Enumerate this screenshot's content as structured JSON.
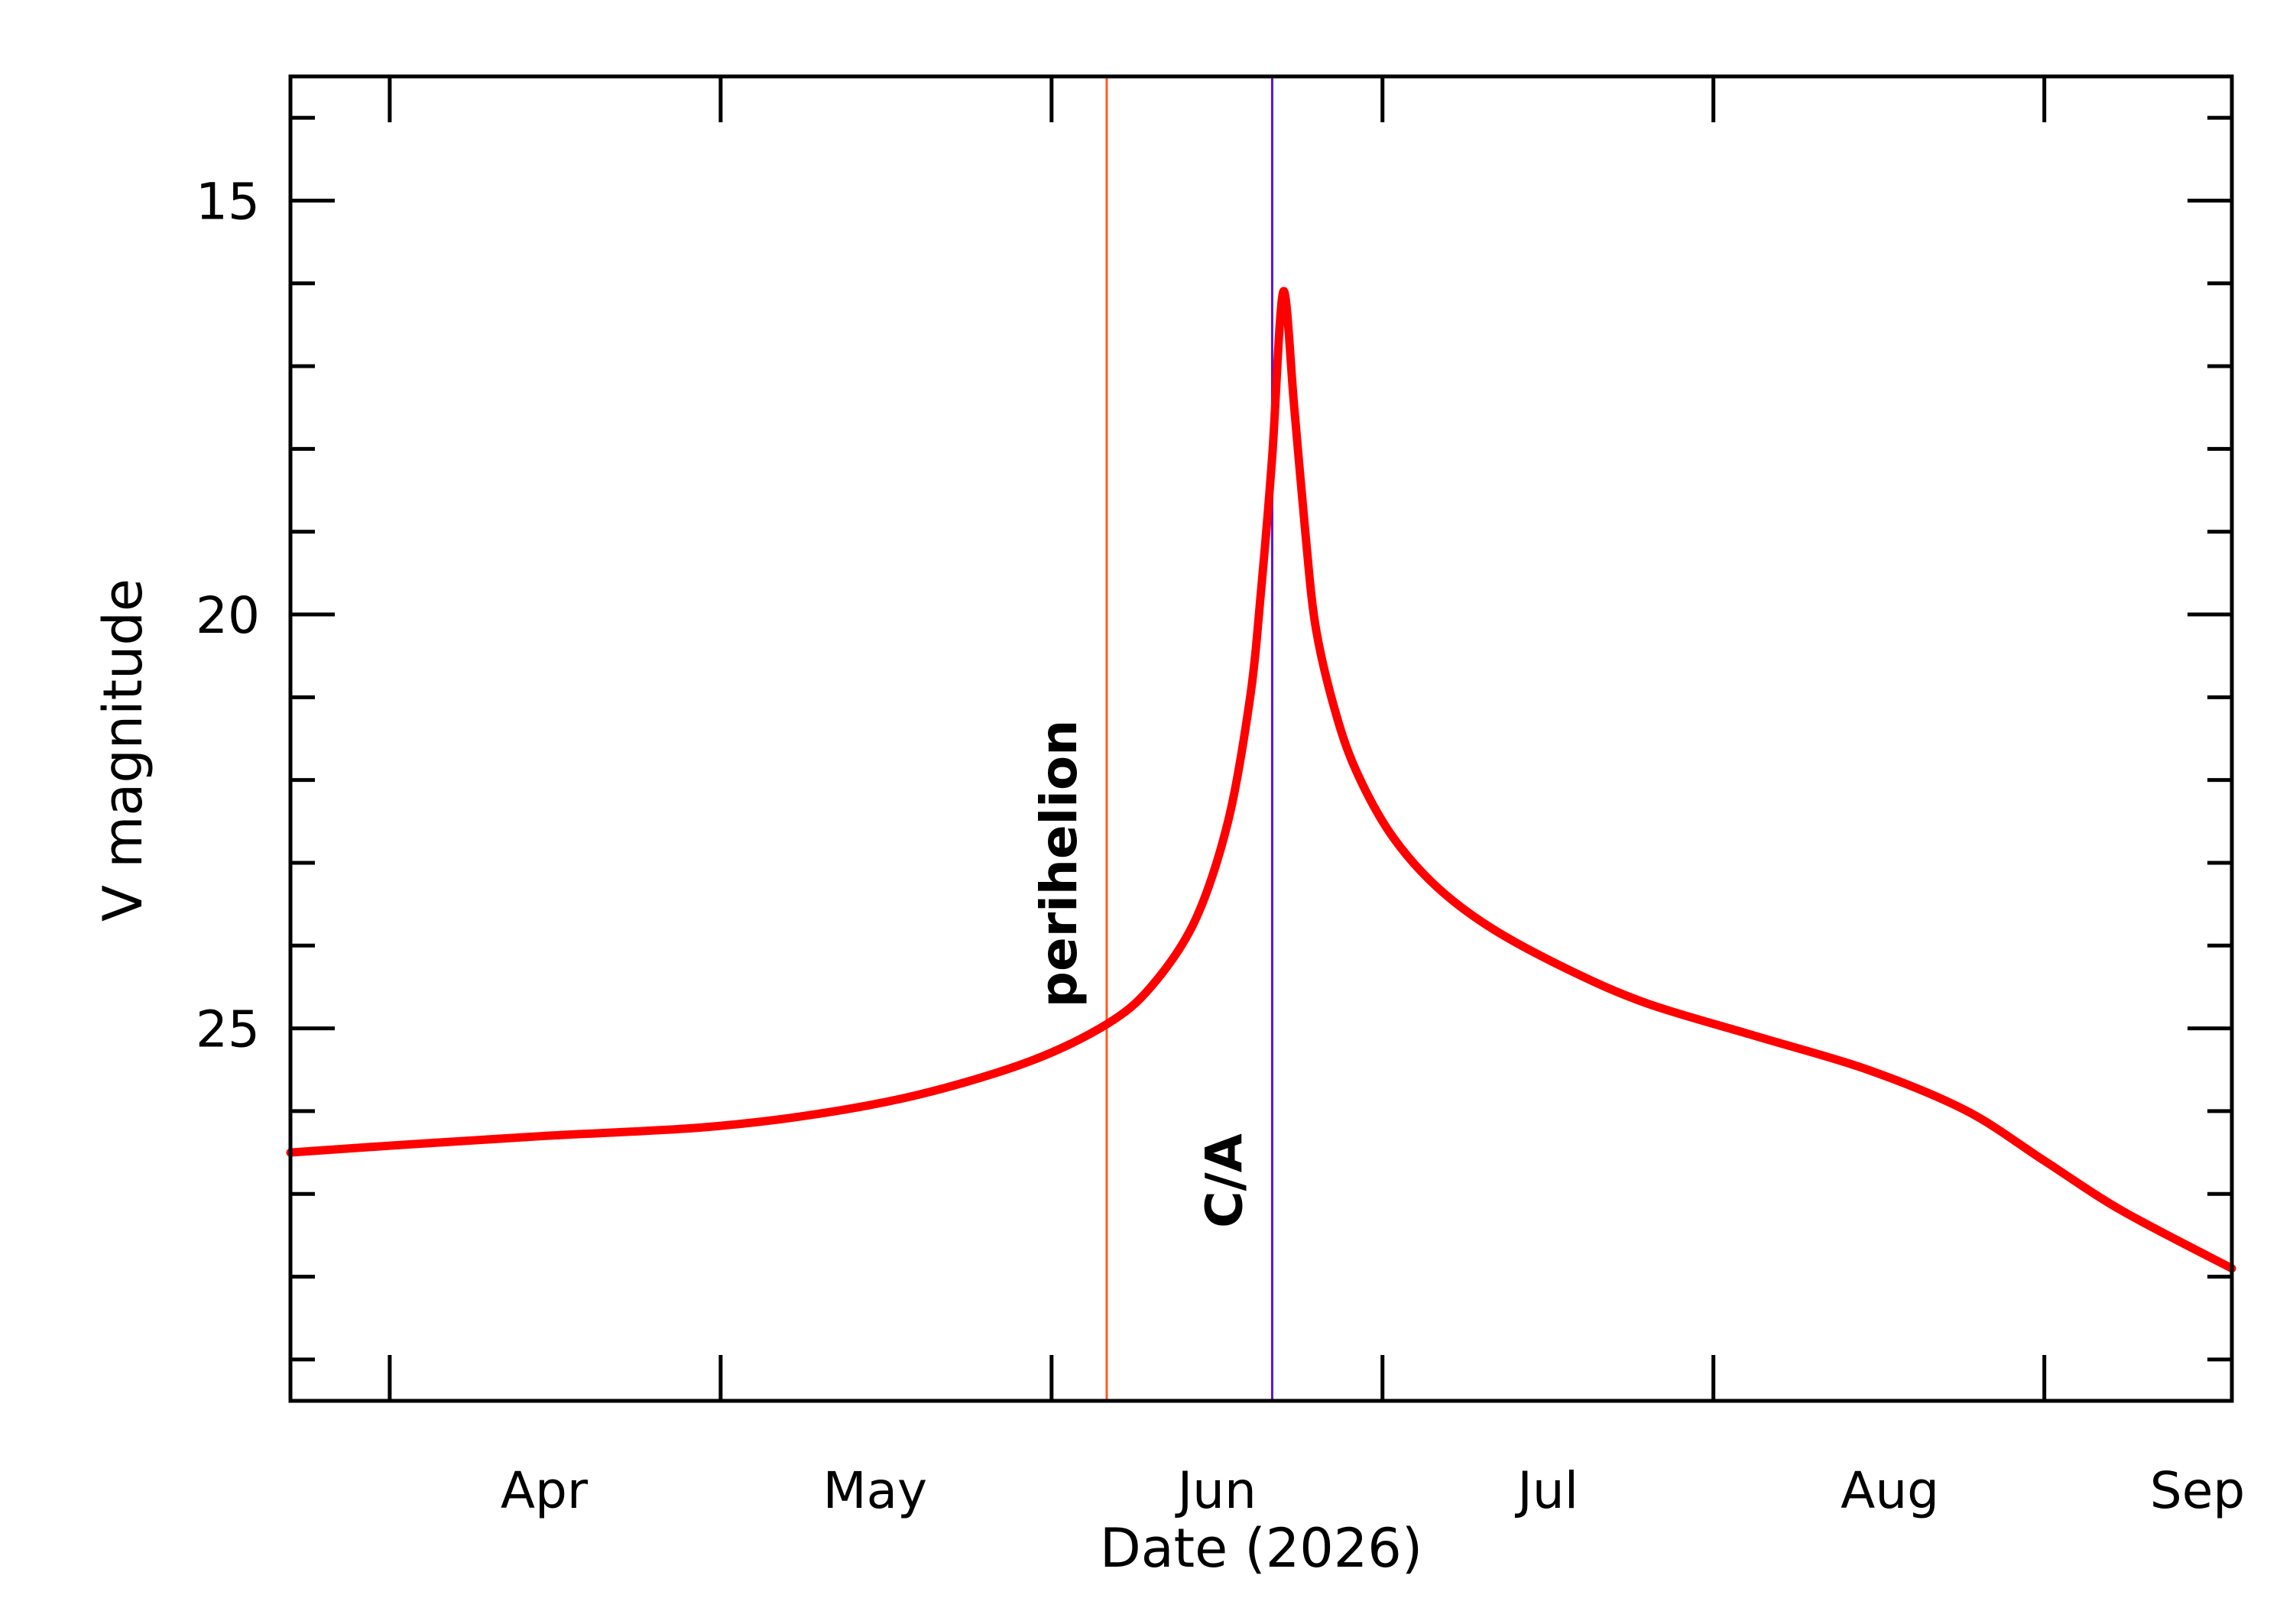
{
  "chart_data": {
    "type": "line",
    "title": "",
    "xlabel": "Date (2026)",
    "ylabel": "V magnitude",
    "y_inverted": true,
    "ylim": [
      29.5,
      13.5
    ],
    "xlim": [
      "2026-03-09",
      "2026-09-01"
    ],
    "grid": false,
    "x_tick_labels": [
      {
        "date": "2026-04-01",
        "label": "Apr"
      },
      {
        "date": "2026-05-01",
        "label": "May"
      },
      {
        "date": "2026-06-01",
        "label": "Jun"
      },
      {
        "date": "2026-07-01",
        "label": "Jul"
      },
      {
        "date": "2026-08-01",
        "label": "Aug"
      },
      {
        "date": "2026-09-01",
        "label": "Sep"
      }
    ],
    "x_major_ticks": [
      "2026-03-18",
      "2026-04-17",
      "2026-05-17",
      "2026-06-16",
      "2026-07-16",
      "2026-08-15"
    ],
    "y_tick_labels": [
      15,
      20,
      25
    ],
    "y_minor_step": 1,
    "series": [
      {
        "color": "#ff0000",
        "x": [
          "2026-03-09",
          "2026-03-20",
          "2026-04-01",
          "2026-04-15",
          "2026-04-25",
          "2026-05-05",
          "2026-05-15",
          "2026-05-22",
          "2026-05-26",
          "2026-05-30",
          "2026-06-02",
          "2026-06-04",
          "2026-06-05",
          "2026-06-06",
          "2026-06-07",
          "2026-06-08",
          "2026-06-09",
          "2026-06-10",
          "2026-06-12",
          "2026-06-14",
          "2026-06-17",
          "2026-06-21",
          "2026-06-26",
          "2026-07-03",
          "2026-07-10",
          "2026-07-20",
          "2026-07-30",
          "2026-08-08",
          "2026-08-15",
          "2026-08-22",
          "2026-09-01"
        ],
        "y": [
          26.5,
          26.4,
          26.3,
          26.2,
          26.05,
          25.8,
          25.4,
          24.95,
          24.5,
          23.7,
          22.5,
          21.0,
          19.7,
          18.1,
          16.1,
          17.5,
          19.0,
          20.2,
          21.3,
          22.0,
          22.7,
          23.3,
          23.8,
          24.3,
          24.7,
          25.1,
          25.5,
          26.0,
          26.6,
          27.2,
          27.9
        ]
      }
    ],
    "vertical_markers": [
      {
        "label": "perihelion",
        "date": "2026-05-22",
        "color": "#ff5a1a"
      },
      {
        "label": "C/A",
        "date": "2026-06-06",
        "color": "#5a14cc"
      }
    ]
  }
}
